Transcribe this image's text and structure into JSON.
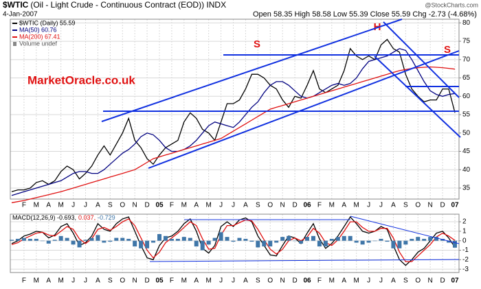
{
  "header": {
    "symbol": "$WTIC",
    "title": "(Oil - Light Crude - Continuous Contract (EOD)) INDX",
    "date": "4-Jan-2007",
    "quote": "Open 58.35 High 58.58 Low 55.39 Close 55.59 Chg -2.73 (-4.68%)",
    "credit": "@StockCharts.com"
  },
  "watermark": "MarketOracle.co.uk",
  "chart_data": [
    {
      "type": "line",
      "categories": [
        null,
        null,
        "F",
        null,
        "M",
        null,
        "A",
        null,
        "M",
        null,
        "J",
        null,
        "J",
        null,
        "A",
        null,
        "S",
        null,
        "O",
        null,
        "N",
        null,
        "D",
        null,
        "05",
        null,
        "F",
        null,
        "M",
        null,
        "A",
        null,
        "M",
        null,
        "J",
        null,
        "J",
        null,
        "A",
        null,
        "S",
        null,
        "O",
        null,
        "N",
        null,
        "D",
        null,
        "06",
        null,
        "F",
        null,
        "M",
        null,
        "A",
        null,
        "M",
        null,
        "J",
        null,
        "J",
        null,
        "A",
        null,
        "S",
        null,
        "O",
        null,
        "N",
        null,
        "D",
        null,
        "07"
      ],
      "series": [
        {
          "name": "$WTIC (Daily) 55.59",
          "color": "#000000",
          "values": [
            34,
            34.5,
            34.5,
            35,
            36.5,
            37,
            36,
            37,
            39.5,
            41,
            40,
            37.5,
            39,
            41,
            44,
            46.5,
            44,
            47,
            50,
            54,
            48,
            46,
            43,
            41.5,
            44,
            46,
            47,
            48,
            53,
            55.5,
            54,
            51,
            50,
            48,
            53,
            58,
            58,
            59,
            62,
            66,
            66,
            65,
            63,
            62,
            59,
            57,
            60,
            59.5,
            63,
            67,
            62,
            61,
            62,
            63,
            67,
            73,
            71,
            70,
            71,
            70,
            74,
            75.5,
            73,
            72,
            66,
            62,
            60,
            58.5,
            59,
            59,
            62,
            62,
            55.59
          ]
        },
        {
          "name": "MA(50) 60.76",
          "color": "#000080",
          "values": [
            33,
            33.5,
            34,
            34.5,
            35,
            35.5,
            36,
            36.5,
            37,
            38,
            39,
            39.5,
            39.5,
            39,
            39,
            40,
            41.5,
            43,
            44.5,
            45.5,
            47,
            49,
            50,
            49.5,
            48,
            46,
            45,
            45,
            45.5,
            46.5,
            48,
            50,
            52,
            53,
            52.5,
            52,
            51.5,
            53,
            55,
            57,
            58.5,
            61,
            63,
            64,
            64,
            63,
            61.5,
            60,
            59.5,
            60,
            61,
            62,
            63,
            63.5,
            63,
            63.5,
            65,
            67.5,
            69.5,
            70,
            70.5,
            71,
            72,
            73,
            72.5,
            70,
            67,
            64,
            61.5,
            60.5,
            60,
            60.5,
            60.76
          ]
        },
        {
          "name": "MA(200) 67.41",
          "color": "#e01010",
          "values": [
            31,
            31.3,
            31.6,
            32,
            32.4,
            32.8,
            33.2,
            33.6,
            34,
            34.5,
            35,
            35.5,
            36,
            36.5,
            37,
            37.5,
            38,
            38.5,
            39,
            39.5,
            40,
            41,
            42,
            43,
            43.5,
            44,
            44.5,
            45,
            45.5,
            46,
            46.5,
            47,
            47.5,
            48,
            48.5,
            49.5,
            50.5,
            51.5,
            52.5,
            53.5,
            54.5,
            55.5,
            56.5,
            57,
            57.5,
            58,
            58.5,
            59,
            59.5,
            60,
            60.5,
            61,
            61.5,
            62,
            62.5,
            63,
            63.5,
            64,
            64.5,
            65,
            65.5,
            66,
            66.5,
            67,
            67.3,
            67.6,
            67.8,
            67.9,
            68,
            67.9,
            67.8,
            67.6,
            67.41
          ]
        }
      ],
      "legend_note": "Volume undef",
      "annotations": [
        "S",
        "H",
        "S"
      ],
      "annotation_color": "#e01010",
      "ylim": [
        32,
        81
      ],
      "yticks": [
        35,
        40,
        45,
        50,
        55,
        60,
        65,
        70,
        75,
        80
      ],
      "grid": true
    },
    {
      "type": "line",
      "categories": [
        null,
        null,
        "F",
        null,
        "M",
        null,
        "A",
        null,
        "M",
        null,
        "J",
        null,
        "J",
        null,
        "A",
        null,
        "S",
        null,
        "O",
        null,
        "N",
        null,
        "D",
        null,
        "05",
        null,
        "F",
        null,
        "M",
        null,
        "A",
        null,
        "M",
        null,
        "J",
        null,
        "J",
        null,
        "A",
        null,
        "S",
        null,
        "O",
        null,
        "N",
        null,
        "D",
        null,
        "06",
        null,
        "F",
        null,
        "M",
        null,
        "A",
        null,
        "M",
        null,
        "J",
        null,
        "J",
        null,
        "A",
        null,
        "S",
        null,
        "O",
        null,
        "N",
        null,
        "D",
        null,
        "07"
      ],
      "series": [
        {
          "name": "MACD(12,26,9) -0.693,",
          "color": "#000000",
          "style": "line",
          "values": [
            -0.3,
            0,
            0.5,
            0.7,
            1.0,
            0.9,
            0.3,
            0.6,
            1.5,
            1.8,
            0.8,
            -0.5,
            -0.2,
            0.5,
            1.8,
            1.2,
            1.0,
            1.8,
            2.3,
            2.5,
            1.0,
            -0.5,
            -1.8,
            -2.0,
            -0.5,
            0.3,
            0.5,
            1.0,
            1.8,
            2.3,
            1.0,
            -0.8,
            -1.3,
            -0.5,
            1.5,
            2.0,
            1.5,
            2.2,
            2.4,
            2.0,
            0.5,
            -0.5,
            -1.5,
            -1.6,
            -0.5,
            0.5,
            0.3,
            -0.3,
            0.8,
            1.8,
            0.2,
            -0.8,
            -0.3,
            0.5,
            1.5,
            2.5,
            1.8,
            1.0,
            0.8,
            1.0,
            1.5,
            1.2,
            -0.5,
            -2.0,
            -2.6,
            -2.0,
            -1.2,
            -0.8,
            0.0,
            0.8,
            1.0,
            0.3,
            -0.693
          ]
        },
        {
          "name": "0.037,",
          "color": "#e01010",
          "style": "line",
          "values": [
            -0.4,
            -0.2,
            0.2,
            0.5,
            0.8,
            0.9,
            0.6,
            0.5,
            1.0,
            1.5,
            1.2,
            0.2,
            -0.3,
            0.2,
            1.2,
            1.4,
            1.1,
            1.5,
            2.0,
            2.3,
            1.6,
            0.3,
            -1.0,
            -1.8,
            -1.2,
            -0.2,
            0.3,
            0.8,
            1.4,
            2.0,
            1.6,
            0.2,
            -0.9,
            -0.8,
            0.6,
            1.6,
            1.6,
            1.9,
            2.2,
            2.1,
            1.2,
            0.1,
            -0.9,
            -1.4,
            -0.9,
            0.0,
            0.3,
            0.0,
            0.4,
            1.3,
            0.8,
            -0.2,
            -0.5,
            0.1,
            1.0,
            2.0,
            2.0,
            1.4,
            1.0,
            1.0,
            1.3,
            1.3,
            0.3,
            -1.2,
            -2.2,
            -2.2,
            -1.6,
            -1.0,
            -0.4,
            0.4,
            0.8,
            0.5,
            0.037
          ]
        },
        {
          "name": "-0.729",
          "color": "#3f76a8",
          "style": "bar",
          "values": [
            0.1,
            0.2,
            0.3,
            0.2,
            0.2,
            0,
            -0.3,
            0.1,
            0.5,
            0.3,
            -0.4,
            -0.7,
            0.1,
            0.3,
            0.6,
            -0.2,
            -0.1,
            0.3,
            0.3,
            0.2,
            -0.6,
            -0.8,
            -0.8,
            -0.2,
            0.7,
            0.5,
            0.2,
            0.2,
            0.4,
            0.3,
            -0.6,
            -1.0,
            -0.4,
            0.3,
            0.9,
            0.4,
            -0.1,
            0.3,
            0.2,
            -0.1,
            -0.7,
            -0.6,
            -0.6,
            -0.2,
            0.4,
            0.5,
            0,
            -0.3,
            0.4,
            0.5,
            -0.6,
            -0.6,
            0.2,
            0.4,
            0.5,
            0.5,
            -0.2,
            -0.4,
            -0.2,
            0,
            0.2,
            -0.1,
            -0.8,
            -0.8,
            -0.4,
            0.2,
            0.4,
            0.2,
            0.4,
            0.4,
            0.2,
            -0.2,
            -0.729
          ]
        }
      ],
      "ylim": [
        -3.35,
        2.8
      ],
      "yticks": [
        -3,
        -2,
        -1,
        0,
        1,
        2
      ],
      "grid": true
    }
  ]
}
